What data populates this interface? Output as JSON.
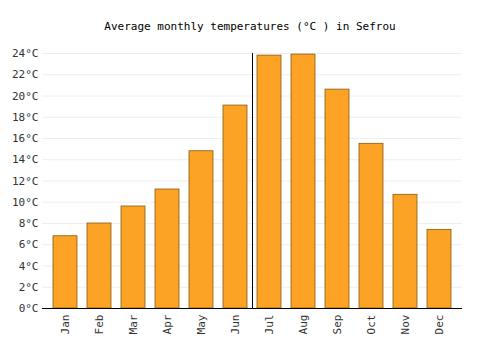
{
  "chart_data": {
    "type": "bar",
    "title": "Average monthly temperatures (°C ) in Sefrou",
    "categories": [
      "Jan",
      "Feb",
      "Mar",
      "Apr",
      "May",
      "Jun",
      "Jul",
      "Aug",
      "Sep",
      "Oct",
      "Nov",
      "Dec"
    ],
    "values": [
      6.8,
      8.0,
      9.6,
      11.2,
      14.8,
      19.1,
      23.8,
      23.9,
      20.6,
      15.5,
      10.7,
      7.4
    ],
    "color": "#fca326",
    "ylim": [
      0,
      24
    ],
    "yticks": [
      {
        "value": 0,
        "label": "0°C"
      },
      {
        "value": 2,
        "label": "2°C"
      },
      {
        "value": 4,
        "label": "4°C"
      },
      {
        "value": 6,
        "label": "6°C"
      },
      {
        "value": 8,
        "label": "8°C"
      },
      {
        "value": 10,
        "label": "10°C"
      },
      {
        "value": 12,
        "label": "12°C"
      },
      {
        "value": 14,
        "label": "14°C"
      },
      {
        "value": 16,
        "label": "16°C"
      },
      {
        "value": 18,
        "label": "18°C"
      },
      {
        "value": 20,
        "label": "20°C"
      },
      {
        "value": 22,
        "label": "22°C"
      },
      {
        "value": 24,
        "label": "24°C"
      }
    ],
    "grid": true
  }
}
